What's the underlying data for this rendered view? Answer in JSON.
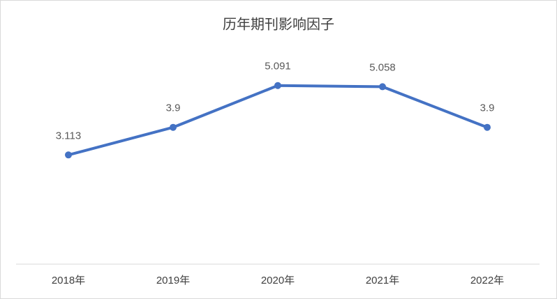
{
  "chart_data": {
    "type": "line",
    "title": "历年期刊影响因子",
    "categories": [
      "2018年",
      "2019年",
      "2020年",
      "2021年",
      "2022年"
    ],
    "values": [
      3.113,
      3.9,
      5.091,
      5.058,
      3.9
    ],
    "color": "#4472c4",
    "ylim": [
      0,
      6
    ]
  }
}
